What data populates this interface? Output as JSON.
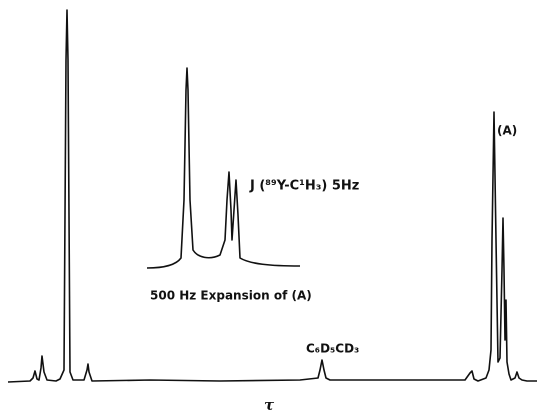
{
  "labels": {
    "coupling": "J (⁸⁹Y-C¹H₃) 5Hz",
    "peak_a": "(A)",
    "expansion": "500 Hz Expansion of (A)",
    "solvent": "C₆D₅CD₃",
    "axis": "τ"
  }
}
